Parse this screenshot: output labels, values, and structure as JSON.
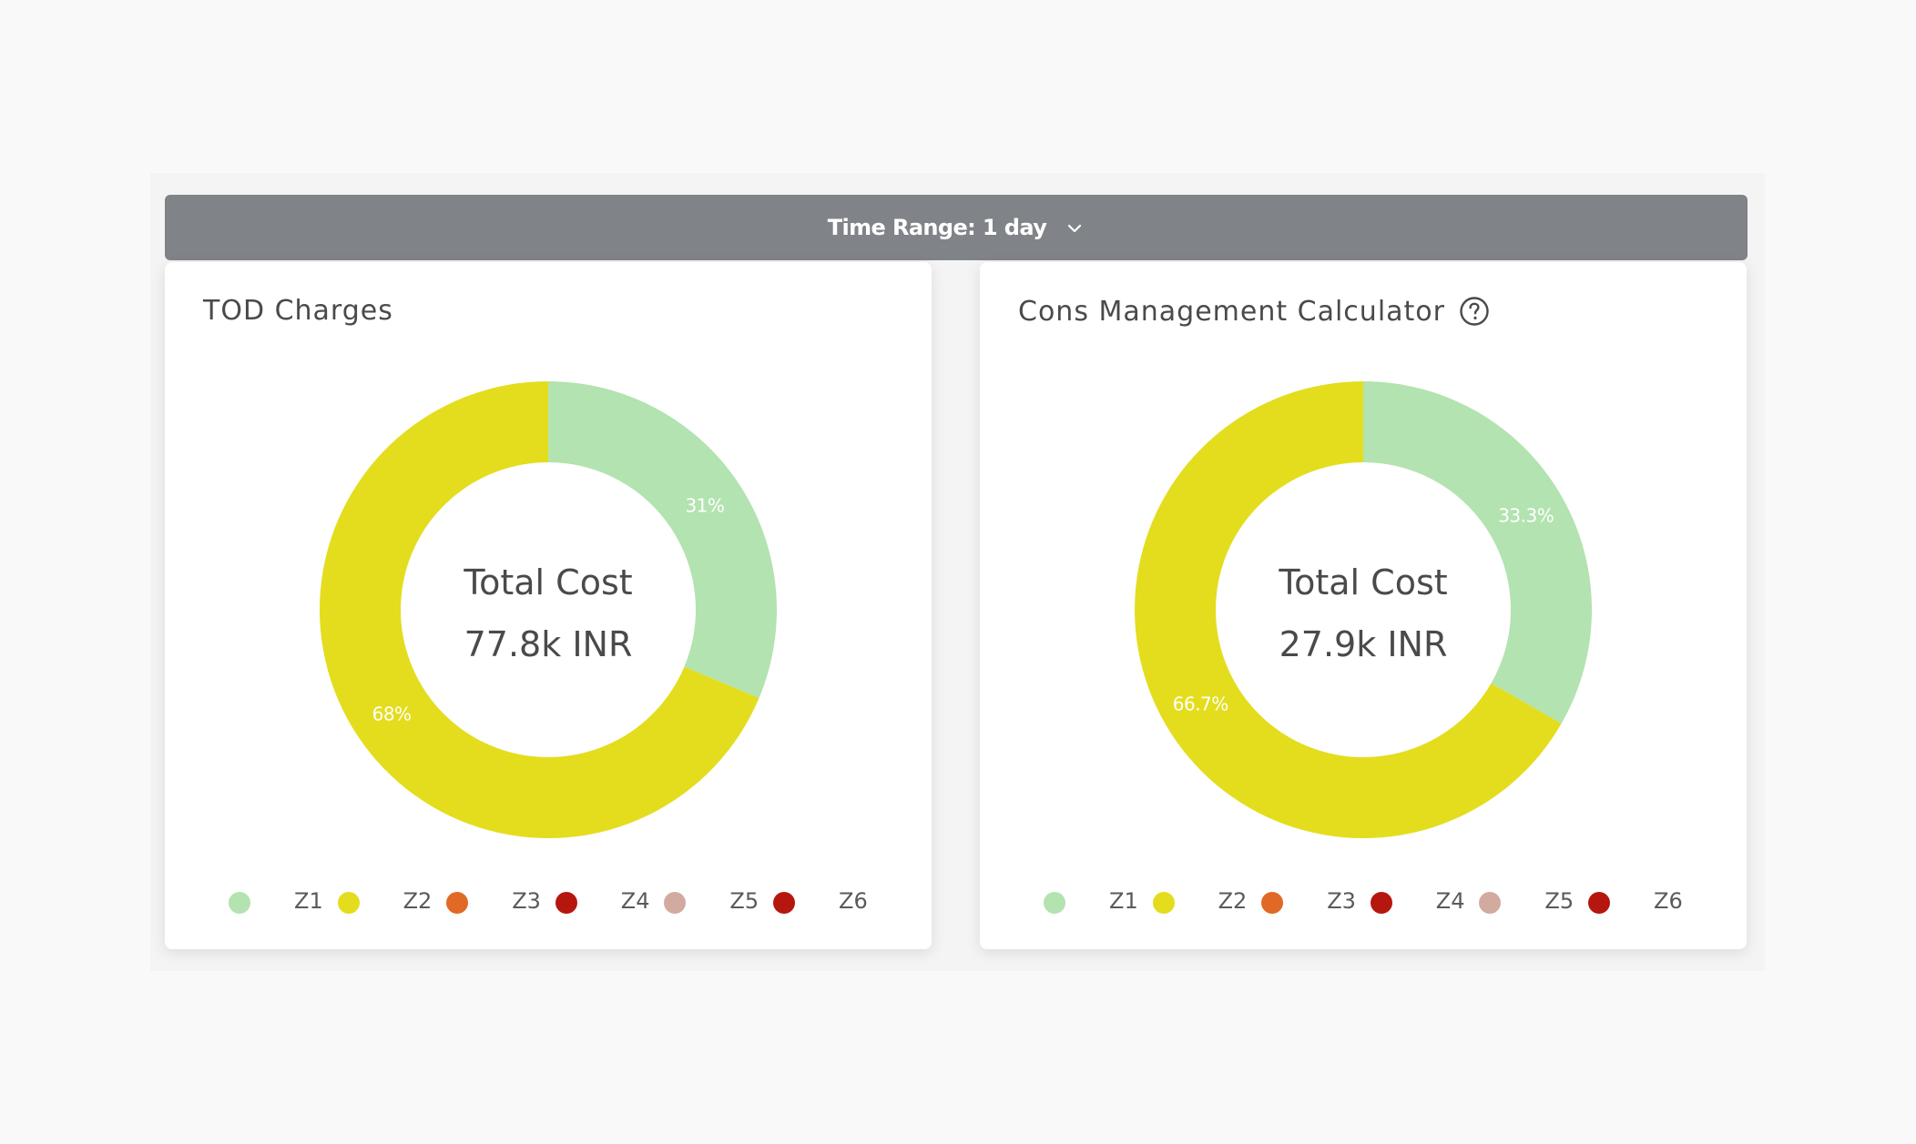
{
  "toolbar": {
    "time_range_label": "Time Range: 1 day"
  },
  "cards": [
    {
      "title": "TOD Charges",
      "has_help": false,
      "center_title": "Total Cost",
      "center_value": "77.8k INR",
      "legend": [
        {
          "label": "Z1",
          "color": "#b3e3b0"
        },
        {
          "label": "Z2",
          "color": "#e3dd1e"
        },
        {
          "label": "Z3",
          "color": "#e06a25"
        },
        {
          "label": "Z4",
          "color": "#b5170e"
        },
        {
          "label": "Z5",
          "color": "#d2aba0"
        },
        {
          "label": "Z6",
          "color": "#b5170e"
        }
      ]
    },
    {
      "title": "Cons Management Calculator",
      "has_help": true,
      "center_title": "Total Cost",
      "center_value": "27.9k INR",
      "legend": [
        {
          "label": "Z1",
          "color": "#b3e3b0"
        },
        {
          "label": "Z2",
          "color": "#e3dd1e"
        },
        {
          "label": "Z3",
          "color": "#e06a25"
        },
        {
          "label": "Z4",
          "color": "#b5170e"
        },
        {
          "label": "Z5",
          "color": "#d2aba0"
        },
        {
          "label": "Z6",
          "color": "#b5170e"
        }
      ]
    }
  ],
  "chart_data": [
    {
      "type": "pie",
      "variant": "donut",
      "title": "TOD Charges",
      "center_text": [
        "Total Cost",
        "77.8k INR"
      ],
      "categories": [
        "Z1",
        "Z2"
      ],
      "values": [
        31,
        68
      ],
      "labels": [
        "31%",
        "68%"
      ],
      "colors": [
        "#b3e3b0",
        "#e3dd1e"
      ],
      "legend": [
        "Z1",
        "Z2",
        "Z3",
        "Z4",
        "Z5",
        "Z6"
      ]
    },
    {
      "type": "pie",
      "variant": "donut",
      "title": "Cons Management Calculator",
      "center_text": [
        "Total Cost",
        "27.9k INR"
      ],
      "categories": [
        "Z1",
        "Z2"
      ],
      "values": [
        33.3,
        66.7
      ],
      "labels": [
        "33.3%",
        "66.7%"
      ],
      "colors": [
        "#b3e3b0",
        "#e3dd1e"
      ],
      "legend": [
        "Z1",
        "Z2",
        "Z3",
        "Z4",
        "Z5",
        "Z6"
      ]
    }
  ]
}
